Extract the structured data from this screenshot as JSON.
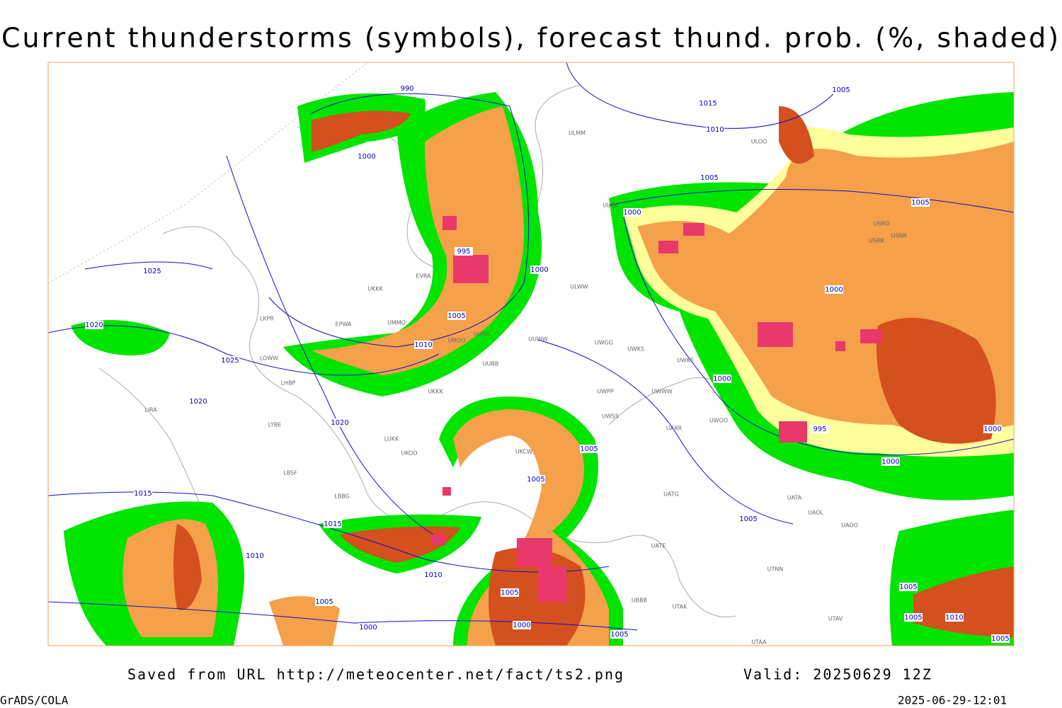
{
  "title": "Current thunderstorms (symbols), forecast thund. prob. (%, shaded)",
  "footer": {
    "source": "Saved from URL http://meteocenter.net/fact/ts2.png",
    "valid": "Valid: 20250629 12Z",
    "software": "GrADS/COLA",
    "timestamp": "2025-06-29-12:01"
  },
  "isobar_labels": [
    "990",
    "1015",
    "1010",
    "1005",
    "1000",
    "1005",
    "1000",
    "1005",
    "995",
    "1025",
    "1000",
    "1000",
    "1020",
    "1005",
    "1010",
    "1025",
    "1000",
    "1020",
    "1020",
    "995",
    "1000",
    "1005",
    "1000",
    "1005",
    "1015",
    "1005",
    "1015",
    "1010",
    "1010",
    "1005",
    "1005",
    "1005",
    "1000",
    "1000",
    "1010",
    "1005",
    "1005",
    "1005"
  ],
  "stations": [
    "ULMM",
    "ULOO",
    "ULAA",
    "USRO",
    "USRK",
    "USNR",
    "EVRA",
    "ULWW",
    "UKKK",
    "UMMO",
    "EPWA",
    "UMOO",
    "UUSS",
    "UUWW",
    "UWGG",
    "UWKS",
    "UWKE",
    "UUBB",
    "UKKK",
    "UWPP",
    "UWWW",
    "UWSS",
    "UARR",
    "UWOO",
    "UKOO",
    "UKCW",
    "UATG",
    "UATA",
    "UAOL",
    "UAOO",
    "UATE",
    "UTNN",
    "UBBB",
    "UTAK",
    "UTAA",
    "LKPR",
    "LOWW",
    "LHBP",
    "LIRA",
    "LYBE",
    "LBSF",
    "LUKK",
    "LBBG",
    "UTAV"
  ]
}
